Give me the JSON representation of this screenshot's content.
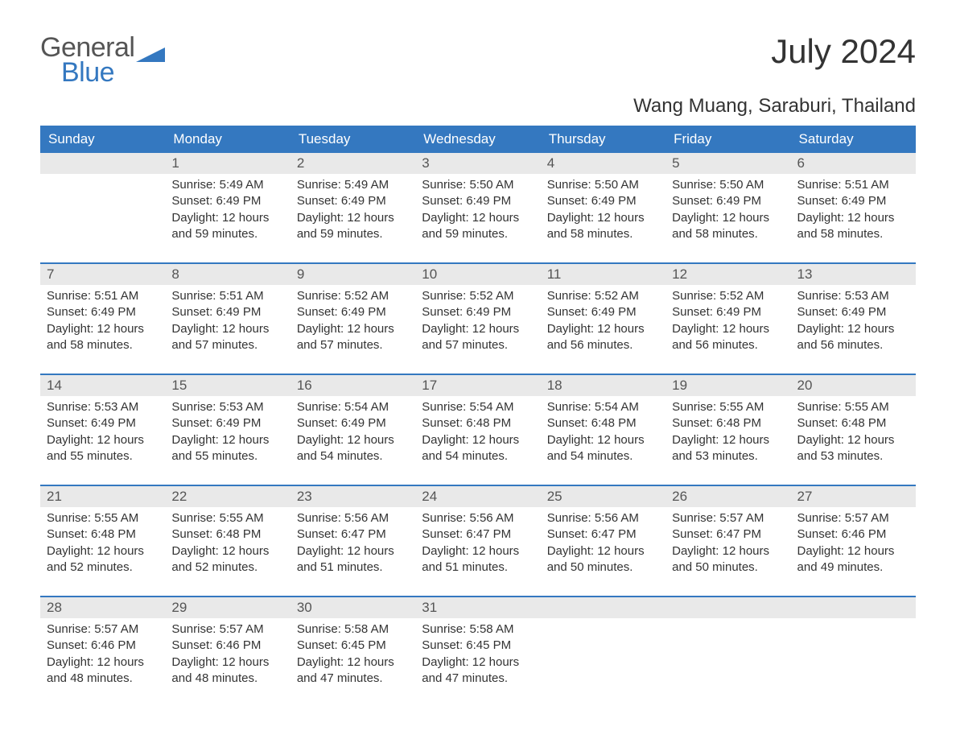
{
  "brand": {
    "top": "General",
    "bottom": "Blue",
    "icon_color": "#3478c0"
  },
  "title": "July 2024",
  "location": "Wang Muang, Saraburi, Thailand",
  "colors": {
    "header_bg": "#3478c0",
    "header_fg": "#ffffff",
    "daynum_bg": "#e9e9e9",
    "text": "#333333",
    "rule": "#3478c0"
  },
  "days_of_week": [
    "Sunday",
    "Monday",
    "Tuesday",
    "Wednesday",
    "Thursday",
    "Friday",
    "Saturday"
  ],
  "weeks": [
    [
      null,
      {
        "n": "1",
        "sr": "5:49 AM",
        "ss": "6:49 PM",
        "dl": "12 hours and 59 minutes."
      },
      {
        "n": "2",
        "sr": "5:49 AM",
        "ss": "6:49 PM",
        "dl": "12 hours and 59 minutes."
      },
      {
        "n": "3",
        "sr": "5:50 AM",
        "ss": "6:49 PM",
        "dl": "12 hours and 59 minutes."
      },
      {
        "n": "4",
        "sr": "5:50 AM",
        "ss": "6:49 PM",
        "dl": "12 hours and 58 minutes."
      },
      {
        "n": "5",
        "sr": "5:50 AM",
        "ss": "6:49 PM",
        "dl": "12 hours and 58 minutes."
      },
      {
        "n": "6",
        "sr": "5:51 AM",
        "ss": "6:49 PM",
        "dl": "12 hours and 58 minutes."
      }
    ],
    [
      {
        "n": "7",
        "sr": "5:51 AM",
        "ss": "6:49 PM",
        "dl": "12 hours and 58 minutes."
      },
      {
        "n": "8",
        "sr": "5:51 AM",
        "ss": "6:49 PM",
        "dl": "12 hours and 57 minutes."
      },
      {
        "n": "9",
        "sr": "5:52 AM",
        "ss": "6:49 PM",
        "dl": "12 hours and 57 minutes."
      },
      {
        "n": "10",
        "sr": "5:52 AM",
        "ss": "6:49 PM",
        "dl": "12 hours and 57 minutes."
      },
      {
        "n": "11",
        "sr": "5:52 AM",
        "ss": "6:49 PM",
        "dl": "12 hours and 56 minutes."
      },
      {
        "n": "12",
        "sr": "5:52 AM",
        "ss": "6:49 PM",
        "dl": "12 hours and 56 minutes."
      },
      {
        "n": "13",
        "sr": "5:53 AM",
        "ss": "6:49 PM",
        "dl": "12 hours and 56 minutes."
      }
    ],
    [
      {
        "n": "14",
        "sr": "5:53 AM",
        "ss": "6:49 PM",
        "dl": "12 hours and 55 minutes."
      },
      {
        "n": "15",
        "sr": "5:53 AM",
        "ss": "6:49 PM",
        "dl": "12 hours and 55 minutes."
      },
      {
        "n": "16",
        "sr": "5:54 AM",
        "ss": "6:49 PM",
        "dl": "12 hours and 54 minutes."
      },
      {
        "n": "17",
        "sr": "5:54 AM",
        "ss": "6:48 PM",
        "dl": "12 hours and 54 minutes."
      },
      {
        "n": "18",
        "sr": "5:54 AM",
        "ss": "6:48 PM",
        "dl": "12 hours and 54 minutes."
      },
      {
        "n": "19",
        "sr": "5:55 AM",
        "ss": "6:48 PM",
        "dl": "12 hours and 53 minutes."
      },
      {
        "n": "20",
        "sr": "5:55 AM",
        "ss": "6:48 PM",
        "dl": "12 hours and 53 minutes."
      }
    ],
    [
      {
        "n": "21",
        "sr": "5:55 AM",
        "ss": "6:48 PM",
        "dl": "12 hours and 52 minutes."
      },
      {
        "n": "22",
        "sr": "5:55 AM",
        "ss": "6:48 PM",
        "dl": "12 hours and 52 minutes."
      },
      {
        "n": "23",
        "sr": "5:56 AM",
        "ss": "6:47 PM",
        "dl": "12 hours and 51 minutes."
      },
      {
        "n": "24",
        "sr": "5:56 AM",
        "ss": "6:47 PM",
        "dl": "12 hours and 51 minutes."
      },
      {
        "n": "25",
        "sr": "5:56 AM",
        "ss": "6:47 PM",
        "dl": "12 hours and 50 minutes."
      },
      {
        "n": "26",
        "sr": "5:57 AM",
        "ss": "6:47 PM",
        "dl": "12 hours and 50 minutes."
      },
      {
        "n": "27",
        "sr": "5:57 AM",
        "ss": "6:46 PM",
        "dl": "12 hours and 49 minutes."
      }
    ],
    [
      {
        "n": "28",
        "sr": "5:57 AM",
        "ss": "6:46 PM",
        "dl": "12 hours and 48 minutes."
      },
      {
        "n": "29",
        "sr": "5:57 AM",
        "ss": "6:46 PM",
        "dl": "12 hours and 48 minutes."
      },
      {
        "n": "30",
        "sr": "5:58 AM",
        "ss": "6:45 PM",
        "dl": "12 hours and 47 minutes."
      },
      {
        "n": "31",
        "sr": "5:58 AM",
        "ss": "6:45 PM",
        "dl": "12 hours and 47 minutes."
      },
      null,
      null,
      null
    ]
  ],
  "labels": {
    "sunrise": "Sunrise: ",
    "sunset": "Sunset: ",
    "daylight": "Daylight: "
  }
}
